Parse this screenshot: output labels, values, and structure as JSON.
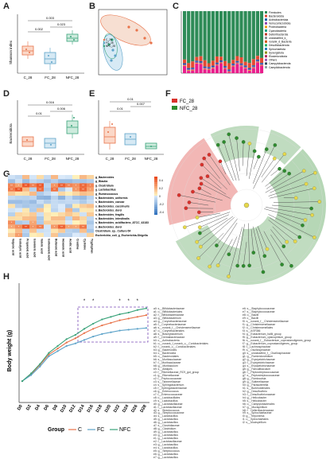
{
  "panels": {
    "A": "A",
    "B": "B",
    "C": "C",
    "D": "D",
    "E": "E",
    "F": "F",
    "G": "G",
    "H": "H"
  },
  "colors": {
    "c": "#e8734a",
    "fc": "#5da3c9",
    "nfc": "#3aa37a",
    "fc_lefse": "#d9312b",
    "nfc_lefse": "#2e8b2e"
  },
  "panel_a": {
    "ylabel": "Shannon index",
    "groups": [
      "C_28",
      "FC_28",
      "NFC_28"
    ],
    "pvals": [
      "0.002",
      "0.023",
      "0.003"
    ]
  },
  "panel_b": {
    "legend": [
      "C_28",
      "FC_28",
      "NFC_28"
    ]
  },
  "panel_c": {
    "legend": [
      "Firmicutes",
      "Bacteroidota",
      "Actinobacteriota",
      "Verrucomicrobiota",
      "Proteobacteria",
      "Cyanobacteria",
      "Deferribacterota",
      "unclassified_k_",
      "norank_d_Bacteria",
      "Desulfobacterota",
      "Spirochaetota",
      "Synergistota",
      "Elusimicrobiota",
      "Others",
      "Campylobacterota",
      "Campilobacterota"
    ]
  },
  "panel_d": {
    "ylabel": "Bacteroidota",
    "groups": [
      "C_28",
      "FC_28",
      "NFC_28"
    ],
    "pvals": [
      "0.01",
      "0.006",
      "0.016"
    ]
  },
  "panel_e": {
    "groups": [
      "C_28",
      "FC_28",
      "NFC_28"
    ],
    "pvals": [
      "0.007",
      "0.01",
      "0.01"
    ]
  },
  "panel_f": {
    "legend": [
      "FC_28",
      "NFC_28"
    ]
  },
  "panel_g": {
    "rows": [
      "g_Bacteroides",
      "g_Blautia",
      "g_Clostridium",
      "g_Lactobacillus",
      "g_Ruminococcus",
      "s_Bacteroides_uniformis",
      "s_Bacteroides_caecae",
      "s_Bacteroides_caccimuris",
      "s_Bacteroides_dorei",
      "s_Bacteroides_fragilis",
      "s_Bacteroides_intestinalis",
      "s_Bacteroides_acidifaciens_ATCC_43183",
      "s_Bacteroides_dorei",
      "Clostridium_sp._Culture-54",
      "Escherichia_coli_g_Escherichia-Shigella"
    ],
    "cols": [
      "Valproic acid",
      "Isobutyric acid",
      "Propanoic acid",
      "Isovaleric acid",
      "Valeric acid",
      "Isohexanoic acid",
      "Butanoic acid",
      "Hexanoic acid",
      "Acetic acid",
      "Creatine",
      "Cysteine",
      "Tryptophan"
    ],
    "scale": [
      "0.4",
      "0.2",
      "0",
      "-0.2",
      "-0.4"
    ],
    "stars": [
      [
        "",
        "",
        "",
        "",
        "",
        "",
        "",
        "",
        "",
        "",
        "",
        ""
      ],
      [
        "",
        "",
        "",
        "",
        "",
        "",
        "",
        "",
        "",
        "",
        "",
        ""
      ],
      [
        "**",
        "*",
        "**",
        "**",
        "**",
        "",
        "*",
        "**",
        "**",
        "*",
        "**",
        "*"
      ],
      [
        "**",
        "**",
        "",
        "",
        "**",
        "",
        "**",
        "",
        "",
        "*",
        "**",
        "*"
      ],
      [
        "",
        "",
        "",
        "",
        "",
        "",
        "",
        "",
        "",
        "",
        "",
        ""
      ],
      [
        "",
        "",
        "",
        "",
        "",
        "",
        "",
        "",
        "",
        "",
        "",
        ""
      ],
      [
        "",
        "",
        "",
        "",
        "",
        "",
        "",
        "",
        "",
        "",
        "",
        ""
      ],
      [
        "",
        "",
        "",
        "",
        "",
        "",
        "",
        "",
        "",
        "",
        "",
        ""
      ],
      [
        "",
        "",
        "",
        "",
        "",
        "",
        "",
        "",
        "",
        "",
        "",
        ""
      ],
      [
        "",
        "",
        "",
        "",
        "",
        "",
        "",
        "",
        "",
        "",
        "",
        ""
      ],
      [
        "",
        "",
        "",
        "",
        "",
        "",
        "",
        "",
        "",
        "",
        "",
        ""
      ],
      [
        "*",
        "",
        "",
        "*",
        "",
        "",
        "",
        "",
        "",
        "",
        "",
        ""
      ],
      [
        "*",
        "*",
        "**",
        "*",
        "**",
        "",
        "*",
        "**",
        "*",
        "*",
        "**",
        ""
      ],
      [
        "",
        "",
        "",
        "",
        "",
        "",
        "",
        "",
        "",
        "",
        "",
        ""
      ],
      [
        "",
        "*",
        "",
        "",
        "",
        "",
        "",
        "",
        "",
        "",
        "",
        ""
      ]
    ]
  },
  "panel_h": {
    "ylabel": "Body weight (g)",
    "groups": [
      "C",
      "FC",
      "NFC"
    ],
    "legend_title": "Group",
    "stars": [
      "*",
      "*",
      "*",
      "*",
      "*"
    ]
  },
  "chart_data": [
    {
      "type": "line",
      "title": "",
      "ylabel": "Body weight (g)",
      "xlabel": "",
      "x": [
        "D0",
        "D2",
        "D4",
        "D6",
        "D8",
        "D10",
        "D12",
        "D14",
        "D16",
        "D18",
        "D20",
        "D22",
        "D24",
        "D26",
        "D28"
      ],
      "series": [
        {
          "name": "C",
          "values": [
            11.5,
            12.3,
            13.4,
            14.6,
            15.3,
            16.0,
            16.5,
            17.1,
            17.6,
            18.0,
            18.3,
            18.6,
            18.8,
            19.0,
            19.2
          ]
        },
        {
          "name": "FC",
          "values": [
            11.5,
            12.2,
            13.2,
            14.4,
            15.0,
            15.6,
            15.9,
            16.3,
            16.7,
            17.0,
            17.2,
            17.4,
            17.5,
            17.6,
            17.7
          ]
        },
        {
          "name": "NFC",
          "values": [
            11.5,
            12.4,
            13.5,
            14.8,
            15.6,
            16.4,
            16.9,
            17.6,
            18.2,
            18.7,
            19.0,
            19.3,
            19.5,
            19.8,
            20.0
          ]
        }
      ]
    }
  ],
  "lefse": {
    "col1": [
      "a0: s__Bifidobacteriaceae",
      "a1: o__Bifidobacteriales",
      "a2: f__Bifidobacteriaceae",
      "a3: g__Bifidobacterium",
      "a4: g__Corynebacteriaceae",
      "a5: f__Corynebacteriaceae",
      "a6: s__norank_f__Christensenellaceae",
      "a7: o__Corynebacteriales",
      "a8: s__Brachybacterium",
      "a9: f__Dermabacteraceae",
      "b0: c__Actinobacteria",
      "b1: o__norank_f_norank_o__Coriobacteriales",
      "b2: f__norank_o__Coriobacteriales",
      "b3: g__Bacteroides",
      "b4: c__Bacteroidia",
      "b5: o__Bacteroidales",
      "b6: s__Muribaculaceae",
      "b7: f__Muribaculaceae",
      "b8: g__Muribaculum",
      "b9: s__Alistipes",
      "c0: f__Rikenellaceae_RC9_gut_group",
      "c1: g__Rikenellaceae",
      "c2: f__Peptococcaceae",
      "c3: s__Tannerellaceae",
      "c4: s__Sphingobacterium",
      "c5: f__Sphingobacteriaceae",
      "c6: g__Enterococcus",
      "c7: f__Enterococcaceae",
      "c8: o__Lactobacillales",
      "c9: s__Lactobacillus",
      "d0: g__Lactobacillaceae",
      "d1: f__Lactobacillaceae",
      "d2: s__Streptococcus",
      "d3: g__Streptococcaceae",
      "d4: s__Lactobacillus",
      "d5: g__Lactobacillus",
      "d6: g__Lactobacillus",
      "d7: s__Clostridiaceae",
      "d8: g__Clostridium",
      "d9: g__Lactobacillus",
      "e0: g__Lactobacillus",
      "e1: g__Lactobacillus",
      "e2: f__Lactobacillaceae",
      "e3: g__Lactobacillus",
      "e4: s__Lactobacillus",
      "e5: g__Streptococcus",
      "e6: g__Lactobacillus",
      "e7: g__Lactobacillus"
    ],
    "col2": [
      "e6: s__Staphylococcaceae",
      "e7: s__Staphylococcaceae",
      "e8: o__Bacilli",
      "e9: c__Bacilli",
      "f0: s__norank_f__Christensenellaceae",
      "f1: g__Christensenellaceae",
      "f2: o__Christensenellales",
      "f3: s__ASF356",
      "f4: g__Eubacterium_hallii_group",
      "f5: g__Eubacterium_xylanophilum_group",
      "f6: s__norank_f__Eubacterium_coprostanoligenes_group",
      "f7: g__Eubacterium_coprostanoligenes_group",
      "f8: f__Lachnospiraceae",
      "f9: s__Oscillospiraceae",
      "g0: s__unclassified_f__Oscillospiraceae",
      "g1: g__Ruminiclostridium",
      "g2: g__Erysipelotrichaceae",
      "g3: f__Erysipelotrichaceae",
      "g4: s__Erysipelotrichaceae",
      "g5: g__Faecalibaculum",
      "g6: f__Peptostreptococcaceae",
      "g7: s__Peptostreptococcaceae",
      "g8: g__Romboutsia",
      "g9: g__Sutterellaceae",
      "h0: g__Parasutterella",
      "h1: s__Burkholderiales",
      "h2: g__Desulfovibrio",
      "h3: f__Desulfovibrionaceae",
      "h4: g__Helicobacter",
      "h5: s__Helicobacter",
      "h6: o__Campylobacterales",
      "h7: g__Mucispirillum",
      "h8: f__Deferribacteraceae",
      "h9: s__Spirochaetaceae",
      "i0: g__Treponema",
      "i1: o__Spirochaetales",
      "i2: s__Mucispirillum"
    ]
  }
}
